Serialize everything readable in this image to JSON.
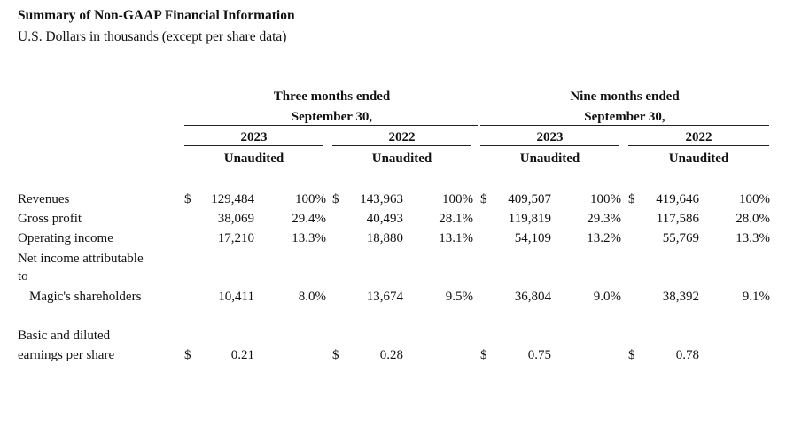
{
  "title": "Summary of Non-GAAP Financial Information",
  "subtitle": "U.S. Dollars in thousands (except per share data)",
  "periods": [
    {
      "line1": "Three months ended",
      "line2": "September 30,"
    },
    {
      "line1": "Nine months ended",
      "line2": "September 30,"
    }
  ],
  "columns": [
    {
      "year": "2023",
      "status": "Unaudited"
    },
    {
      "year": "2022",
      "status": "Unaudited"
    },
    {
      "year": "2023",
      "status": "Unaudited"
    },
    {
      "year": "2022",
      "status": "Unaudited"
    }
  ],
  "rows": [
    {
      "label": "Revenues",
      "cells": [
        {
          "dollar": "$",
          "value": "129,484",
          "pct": "100%"
        },
        {
          "dollar": "$",
          "value": "143,963",
          "pct": "100%"
        },
        {
          "dollar": "$",
          "value": "409,507",
          "pct": "100%"
        },
        {
          "dollar": "$",
          "value": "419,646",
          "pct": "100%"
        }
      ]
    },
    {
      "label": "Gross profit",
      "cells": [
        {
          "value": "38,069",
          "pct": "29.4%"
        },
        {
          "value": "40,493",
          "pct": "28.1%"
        },
        {
          "value": "119,819",
          "pct": "29.3%"
        },
        {
          "value": "117,586",
          "pct": "28.0%"
        }
      ]
    },
    {
      "label": "Operating income",
      "cells": [
        {
          "value": "17,210",
          "pct": "13.3%"
        },
        {
          "value": "18,880",
          "pct": "13.1%"
        },
        {
          "value": "54,109",
          "pct": "13.2%"
        },
        {
          "value": "55,769",
          "pct": "13.3%"
        }
      ]
    },
    {
      "label_line1": "Net income attributable",
      "label_line2": "to",
      "label_line3": "Magic's shareholders",
      "cells": [
        {
          "value": "10,411",
          "pct": "8.0%"
        },
        {
          "value": "13,674",
          "pct": "9.5%"
        },
        {
          "value": "36,804",
          "pct": "9.0%"
        },
        {
          "value": "38,392",
          "pct": "9.1%"
        }
      ]
    },
    {
      "label_line1": "Basic and diluted",
      "label_line2": "earnings per share",
      "cells": [
        {
          "dollar": "$",
          "value": "0.21"
        },
        {
          "dollar": "$",
          "value": "0.28"
        },
        {
          "dollar": "$",
          "value": "0.75"
        },
        {
          "dollar": "$",
          "value": "0.78"
        }
      ]
    }
  ]
}
